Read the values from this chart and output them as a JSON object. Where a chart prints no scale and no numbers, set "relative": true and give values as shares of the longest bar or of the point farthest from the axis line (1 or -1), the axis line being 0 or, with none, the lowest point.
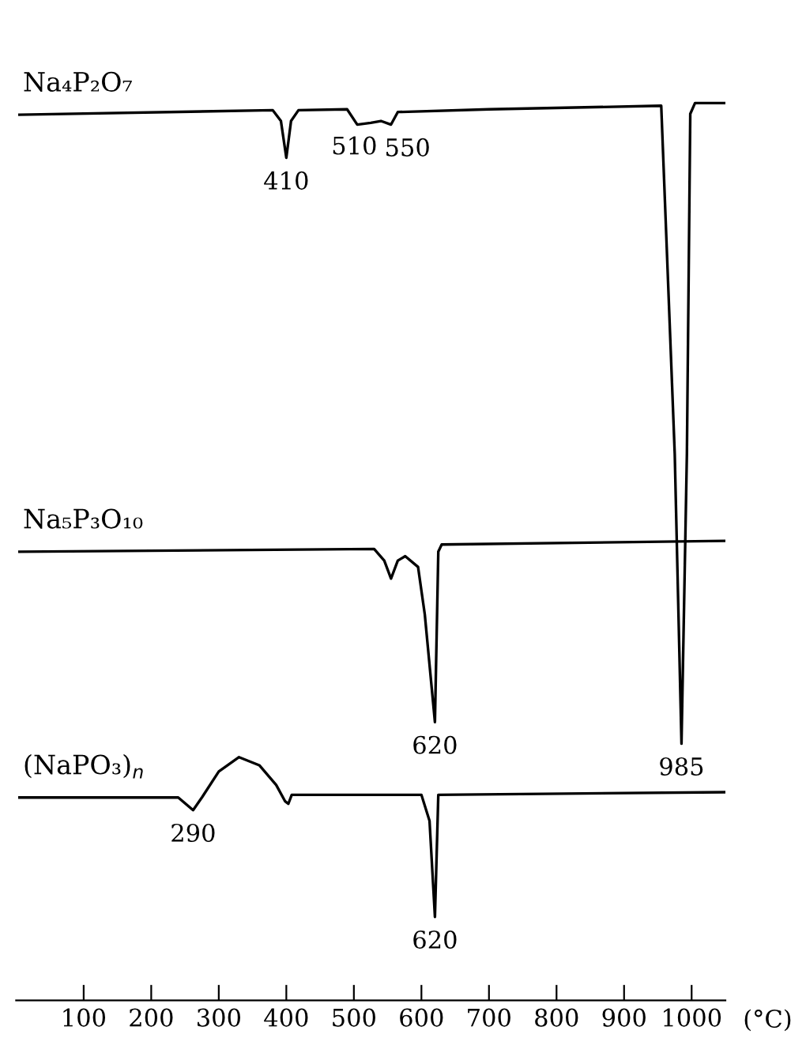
{
  "chart_data": {
    "type": "line",
    "relative": true,
    "xlabel": "(°C)",
    "xlim": [
      0,
      1050
    ],
    "xticks": [
      100,
      200,
      300,
      400,
      500,
      600,
      700,
      800,
      900,
      1000
    ],
    "grid": false,
    "legend": false,
    "marker": "none",
    "line_style": "solid",
    "series": [
      {
        "name": "Na₄P₂O₇",
        "color": "#000000",
        "x": [
          5,
          380,
          392,
          400,
          407,
          418,
          490,
          505,
          525,
          540,
          555,
          565,
          700,
          955,
          975,
          985,
          993,
          998,
          1005,
          1050
        ],
        "values": [
          0.987,
          0.992,
          0.98,
          0.939,
          0.98,
          0.992,
          0.993,
          0.976,
          0.978,
          0.98,
          0.976,
          0.99,
          0.993,
          0.997,
          0.609,
          0.286,
          0.609,
          0.988,
          1.0,
          1.0
        ]
      },
      {
        "name": "Na₅P₃O₁₀",
        "color": "#000000",
        "x": [
          5,
          530,
          545,
          555,
          565,
          576,
          595,
          605,
          620,
          625,
          630,
          1050
        ],
        "values": [
          0.5,
          0.503,
          0.49,
          0.47,
          0.49,
          0.495,
          0.483,
          0.43,
          0.31,
          0.5,
          0.508,
          0.512
        ]
      },
      {
        "name": "(NaPO₃)$_{n}$",
        "color": "#000000",
        "x": [
          5,
          240,
          262,
          275,
          300,
          330,
          360,
          385,
          398,
          403,
          408,
          600,
          612,
          620,
          625,
          1050
        ],
        "values": [
          0.226,
          0.226,
          0.212,
          0.226,
          0.255,
          0.271,
          0.262,
          0.24,
          0.222,
          0.219,
          0.229,
          0.229,
          0.2,
          0.093,
          0.229,
          0.232
        ]
      }
    ],
    "annotations": [
      {
        "text": "410",
        "x": 400,
        "y": 0.939
      },
      {
        "text": "510",
        "x": 525,
        "y": 0.978
      },
      {
        "text": "550",
        "x": 555,
        "y": 0.976
      },
      {
        "text": "985",
        "x": 985,
        "y": 0.286
      },
      {
        "text": "620",
        "x": 620,
        "y": 0.31
      },
      {
        "text": "290",
        "x": 262,
        "y": 0.212
      },
      {
        "text": "620",
        "x": 620,
        "y": 0.093
      }
    ]
  }
}
